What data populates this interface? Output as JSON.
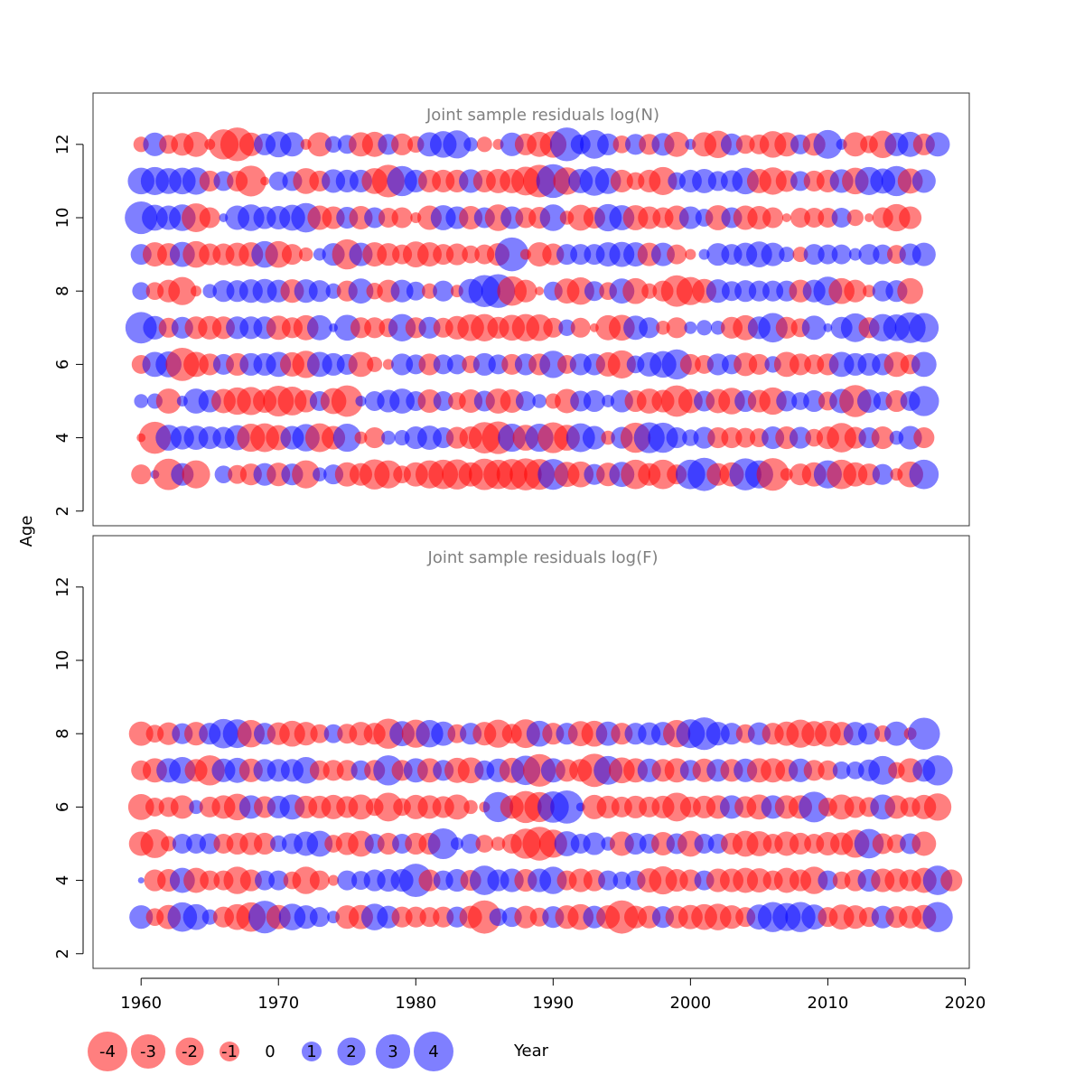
{
  "chart_data": {
    "type": "scatter",
    "variant": "bubble",
    "xlabel": "Year",
    "ylabel": "Age",
    "x_ticks": [
      1960,
      1970,
      1980,
      1990,
      2000,
      2010,
      2020
    ],
    "y_ticks": [
      2,
      4,
      6,
      8,
      10,
      12
    ],
    "xlim": [
      1956.5,
      2020.3
    ],
    "ylim": [
      1.6,
      13.4
    ],
    "colors": {
      "negative": "#ff0000",
      "positive": "#0000ff",
      "opacity": 0.5
    },
    "panels": [
      {
        "title": "Joint sample residuals log(N)",
        "ages": [
          3,
          4,
          5,
          6,
          7,
          8,
          9,
          10,
          11,
          12
        ],
        "years_start": 1960,
        "residuals": {
          "3": [
            -1,
            0.2,
            -2.5,
            1.3,
            -2,
            0,
            0.8,
            -0.9,
            -1.2,
            1.3,
            -1.4,
            1.2,
            -2,
            0.5,
            1,
            -1.5,
            -1.3,
            -2.3,
            -2,
            -0.8,
            -1.5,
            -2,
            -2.2,
            -2.3,
            -1.5,
            -2.5,
            -2.2,
            -2.4,
            -2.6,
            -2.4,
            2.4,
            -1.6,
            -1.7,
            1.1,
            -1.4,
            1.6,
            -2.2,
            -1.3,
            -2.2,
            -1,
            2.2,
            2.8,
            -1.3,
            -1.5,
            2.6,
            2,
            -2.7,
            -0.4,
            -1.2,
            -1.5,
            2,
            -2.2,
            -1.5,
            -1.2,
            1.1,
            -0.4,
            -1.7,
            2.2
          ],
          "4": [
            -0.2,
            -2.6,
            1.7,
            1.4,
            1.5,
            1.3,
            1.2,
            1.6,
            -2,
            -2.1,
            -1.6,
            1.4,
            1.9,
            -2.1,
            -1.4,
            2,
            -0.4,
            -1.1,
            0.5,
            0.6,
            1.3,
            1.5,
            1.1,
            -1.2,
            -1.3,
            -2.5,
            -2.7,
            2,
            -1.7,
            2,
            -2.4,
            -1.7,
            2.1,
            1.4,
            -0.5,
            1.2,
            -2.3,
            2.4,
            2.3,
            1.1,
            0.7,
            1.2,
            -1.1,
            -1.1,
            -1,
            -0.9,
            1.3,
            -1.3,
            1.2,
            -0.8,
            -1.3,
            -2.2,
            -1.2,
            1.1,
            -1.3,
            0.5,
            1.4,
            -1.1
          ],
          "5": [
            0.5,
            0.6,
            -1.6,
            0.3,
            1.6,
            1.3,
            -1.5,
            -1.9,
            -2,
            -1.4,
            -2.4,
            -2.1,
            -1.3,
            1,
            -1.7,
            -2.5,
            0.3,
            1,
            1.3,
            1.6,
            1,
            -1.4,
            1,
            -0.8,
            -1.4,
            1.1,
            -1.6,
            -1.4,
            1,
            0.5,
            -0.6,
            -1.5,
            1.1,
            1.2,
            0.4,
            1.3,
            -1.2,
            -1.6,
            -1.3,
            -2.5,
            -1.5,
            1.1,
            -1.5,
            -1.8,
            1.2,
            -1.3,
            -1.9,
            1.1,
            0.8,
            1.2,
            -0.9,
            1.5,
            -2.6,
            1.4,
            0.9,
            -1.2,
            1,
            2.3
          ],
          "6": [
            -0.9,
            1.6,
            1.7,
            -2.8,
            -1.6,
            -1.2,
            1.1,
            -1.3,
            1.3,
            1.3,
            1.6,
            -1.5,
            -1.9,
            1.6,
            1.3,
            1.1,
            -1.6,
            -0.6,
            -0.3,
            1.2,
            1,
            -1.2,
            1,
            1,
            -0.8,
            1.3,
            1,
            -1.1,
            1.2,
            -1.2,
            1.9,
            -0.9,
            1.2,
            1.2,
            -1.5,
            -2,
            0.8,
            1.5,
            1.8,
            2.3,
            -1.1,
            -0.9,
            1.2,
            1,
            -1.4,
            -1.1,
            0.7,
            -1.6,
            -1.2,
            -1,
            -1.2,
            1.6,
            1.3,
            1.3,
            1.2,
            -1.6,
            -1,
            1.6
          ],
          "7": [
            2.5,
            1.4,
            -1,
            1.2,
            -1.3,
            -1.4,
            -1.3,
            1.3,
            1.3,
            1.3,
            -1.5,
            -1.1,
            -1.6,
            1.6,
            0.2,
            1.7,
            -1.1,
            -1.1,
            -0.9,
            1.9,
            -1.1,
            1.2,
            -1,
            -1.4,
            -1.8,
            -1.9,
            -1.2,
            -1.7,
            -1.9,
            -1.8,
            -1,
            0.7,
            -1,
            -0.2,
            -1.6,
            -1.7,
            1.5,
            1.1,
            -0.5,
            -1.1,
            0.4,
            0.6,
            0.5,
            -1.2,
            -1.6,
            1.3,
            2.2,
            -1.2,
            -0.9,
            1.5,
            0.2,
            1.2,
            2.1,
            -1.1,
            1.9,
            1.8,
            2.4,
            2.2
          ],
          "8": [
            0.8,
            -0.8,
            -1.3,
            -2,
            -0.3,
            0.5,
            1.2,
            1.2,
            1.4,
            1.5,
            1.3,
            -1.4,
            1.4,
            1.2,
            0.6,
            -1.1,
            1.6,
            -0.7,
            -1.3,
            1.3,
            0.9,
            -0.6,
            1.1,
            -0.4,
            1.5,
            2.6,
            2.9,
            -2.2,
            -1.3,
            -0.2,
            0.9,
            -1.6,
            -1.9,
            1,
            -0.8,
            1.6,
            -1.7,
            -0.6,
            -1.1,
            -2.5,
            -2,
            -1.5,
            1.4,
            1,
            1.2,
            1.1,
            1.1,
            1.1,
            -1.3,
            1.3,
            2.1,
            -1.7,
            -1.3,
            -0.4,
            1.1,
            1.2,
            -1.7
          ],
          "9": [
            1.1,
            -1.5,
            -1.3,
            1.6,
            -1.8,
            -1.2,
            -1.2,
            -1.4,
            -1.5,
            1.8,
            -1.8,
            -1.1,
            -0.5,
            0.4,
            1.3,
            -2.3,
            1.4,
            -1.5,
            -1.3,
            -1,
            -1.7,
            -1.5,
            -1.1,
            -1.2,
            -0.8,
            -1,
            -1.3,
            2.9,
            -0.3,
            -1.5,
            -1.2,
            1.1,
            1.1,
            1.1,
            1.5,
            1.6,
            1.5,
            -1.4,
            1.4,
            -1,
            -0.3,
            0.3,
            1.3,
            1.1,
            1.4,
            1.7,
            1.4,
            0.6,
            -0.6,
            1.1,
            1,
            1,
            0.4,
            1.1,
            1,
            -0.9,
            1.2,
            1.4
          ],
          "10": [
            2.7,
            1.7,
            1.5,
            1.8,
            -2.1,
            -1.1,
            0.2,
            1.5,
            1.8,
            1.3,
            1.4,
            1.7,
            2.2,
            -1.5,
            -1.3,
            1.2,
            -1.4,
            1.1,
            -1,
            -1.1,
            -0.3,
            -1.5,
            1.6,
            1.3,
            -1.4,
            1.1,
            -1.8,
            1.3,
            -1.1,
            -1.2,
            1.8,
            -0.5,
            -1.7,
            -1.2,
            1.9,
            1.6,
            -1.6,
            -1.3,
            -1.1,
            -1.5,
            1.3,
            0.8,
            -1.6,
            1.1,
            -1.5,
            -1.4,
            -1.1,
            -0.2,
            -1,
            -1,
            -1,
            1,
            -0.7,
            -0.2,
            -1.1,
            -1.9,
            -1.3
          ],
          "11": [
            1.8,
            2,
            1.7,
            1.8,
            1.9,
            -1.1,
            1,
            -1.1,
            -2.4,
            -0.2,
            0.9,
            1,
            -1.7,
            -1.1,
            1.4,
            1.3,
            1.3,
            -1.7,
            -2.7,
            2.3,
            1.3,
            -1.3,
            -1.3,
            -1.3,
            1.4,
            -1.3,
            -1.5,
            -1.5,
            -2.1,
            -2.7,
            2.9,
            -1.9,
            1.5,
            2.2,
            1.7,
            -1.3,
            -0.8,
            -1.3,
            -2,
            0.8,
            1.3,
            1.5,
            1,
            1.2,
            1.8,
            -1.5,
            -1.9,
            -1.2,
            1,
            -1.1,
            -1.3,
            1.4,
            -1.8,
            2,
            1.6,
            2.3,
            -1.6,
            1.4
          ],
          "12": [
            -0.6,
            1.4,
            -0.9,
            -1.3,
            -1.6,
            -0.3,
            -2.3,
            -2.9,
            -1.4,
            1.2,
            1.7,
            1.5,
            -0.3,
            -1.5,
            0.7,
            0.9,
            -1.5,
            -1.6,
            1.1,
            -1.2,
            -0.7,
            1.5,
            1.8,
            2,
            0.5,
            -0.6,
            -0.3,
            1.4,
            -1.2,
            -1.6,
            -1.8,
            2.9,
            1,
            2.1,
            1.2,
            -0.8,
            1.1,
            -1.1,
            1.3,
            -1.6,
            0.3,
            -1.5,
            -1.9,
            1.2,
            -0.9,
            -1,
            -1.8,
            -1.5,
            1,
            -1.3,
            2.1,
            0.3,
            -1.5,
            -0.8,
            -1.9,
            1.4,
            1.6,
            -1.2,
            1.5
          ],
          "12_note": ""
        }
      },
      {
        "title": "Joint sample residuals log(F)",
        "ages": [
          3,
          4,
          5,
          6,
          7,
          8
        ],
        "years_start": 1960,
        "residuals": {
          "3": [
            1.4,
            -0.8,
            -1.5,
            2.2,
            1.7,
            0.6,
            -1.1,
            -1.7,
            -2.2,
            2.7,
            -1.5,
            1.8,
            1.4,
            1,
            0.4,
            -1.4,
            -1.5,
            1.8,
            1.3,
            -1.1,
            -1.1,
            -1,
            -1.1,
            1.1,
            -1.3,
            -2.8,
            0.8,
            1,
            -1.3,
            -0.9,
            1.2,
            -1.4,
            -1.7,
            1.3,
            -1.4,
            -2.8,
            -1.3,
            -1.3,
            1.2,
            -1.3,
            -1.5,
            -1.7,
            -1.8,
            -1.4,
            -1,
            1.6,
            2.3,
            2,
            2.3,
            1.6,
            -1,
            -1.6,
            -1.4,
            -1,
            1.3,
            -1.2,
            -1.3,
            -1.5,
            2.3
          ],
          "4": [
            0.1,
            -1.2,
            -1.3,
            1.6,
            -1.6,
            -1,
            -1,
            -1.9,
            -1.2,
            1,
            1,
            -0.8,
            -1.9,
            -1,
            -0.3,
            1,
            0.9,
            1.2,
            1.3,
            1.3,
            2.8,
            -1.2,
            1,
            1.3,
            -1.1,
            2.2,
            1.2,
            1.4,
            -1.3,
            1.4,
            1.9,
            -1,
            -1.4,
            -1.2,
            1,
            0.8,
            1,
            -1.5,
            -2,
            -1.3,
            -1.2,
            1,
            -1.4,
            -1.4,
            -1.6,
            -1.5,
            -1,
            -1.6,
            -1.2,
            -1.9,
            1,
            -0.8,
            -1.2,
            1.3,
            -1.4,
            -1.4,
            -1.2,
            -1.6,
            2.2,
            -1.2
          ],
          "5": [
            -1.5,
            -2.1,
            -0.6,
            1,
            1,
            1.1,
            -1,
            -1.2,
            -1.3,
            -1.2,
            0.7,
            1.1,
            1.5,
            1.7,
            -0.8,
            -1.3,
            -1.7,
            1,
            -1.2,
            1,
            -1.2,
            -1.2,
            2.4,
            0.4,
            1,
            -0.8,
            -0.5,
            -1,
            -2.3,
            -2.9,
            -2,
            1.6,
            1,
            1.3,
            0.5,
            -1.5,
            1.2,
            1,
            -1.4,
            1.1,
            -1.7,
            1,
            1,
            -1.2,
            -1.7,
            -1.6,
            -1,
            -1.5,
            -1.2,
            -1,
            -1.4,
            -1.3,
            -2,
            2.2,
            -1.1,
            -0.9,
            1.1,
            -1.5
          ],
          "6": [
            -1.7,
            -0.9,
            -1,
            -1.4,
            0.5,
            -1.1,
            -1.4,
            -1.8,
            1.4,
            -1.2,
            1.3,
            1.6,
            -1.3,
            -1.3,
            -1.5,
            -1.2,
            -1.6,
            -0.8,
            -2.1,
            -0.8,
            -1.5,
            -1.4,
            -1.2,
            -1.6,
            -0.5,
            -0.3,
            2.3,
            -1.4,
            -2.6,
            -2.3,
            2.5,
            2.8,
            0.2,
            -1.5,
            -1.3,
            -1.1,
            -1.3,
            -1.1,
            -1.3,
            -2.1,
            -1.1,
            -1.3,
            -1.4,
            1.4,
            -1.2,
            -1.6,
            1.4,
            -1.4,
            -1.4,
            2.4,
            -0.9,
            -1.6,
            -1.2,
            -1,
            1.6,
            -1.4,
            -1,
            -1.5,
            -1.9
          ],
          "7": [
            -1,
            -1.5,
            1.5,
            1.8,
            -1.3,
            -2.3,
            1.4,
            1.6,
            -1.4,
            1.3,
            1.3,
            1.3,
            1.8,
            -1,
            -1.1,
            -1.1,
            1,
            -1.1,
            2.3,
            -1.1,
            1.5,
            -1.5,
            1.1,
            -1.6,
            -1.7,
            1,
            1.4,
            -1.6,
            2.2,
            -2.7,
            1.5,
            -1.3,
            -1.3,
            -2.8,
            2.1,
            -1.7,
            -1.5,
            1.4,
            -1.3,
            -1.5,
            1.1,
            -1.4,
            1.3,
            -1.3,
            1.4,
            -1.5,
            -1.5,
            -1.3,
            1.4,
            -1.1,
            -1,
            0.8,
            0.8,
            1.2,
            2.1,
            -0.7,
            -1.5,
            1.3,
            2.3
          ],
          "8": [
            -1.5,
            -0.8,
            -1.3,
            1.1,
            -1.4,
            1.2,
            2.2,
            2.1,
            -1.9,
            1.2,
            -1.3,
            -1.7,
            -1.4,
            -0.9,
            0.9,
            -1,
            -1.4,
            -1.2,
            -2.3,
            1.6,
            -2,
            1.9,
            1.5,
            -0.9,
            1.2,
            -1.4,
            -2,
            -1,
            -2.1,
            1.7,
            -1.2,
            1.2,
            -1.6,
            -1.7,
            1.5,
            -1.2,
            1.2,
            1.3,
            1.4,
            -1.9,
            2.1,
            2.7,
            1.4,
            1.2,
            -0.9,
            1.3,
            -1.2,
            -1.5,
            -2,
            -1.6,
            -1.7,
            -1.4,
            1.4,
            1.2,
            -0.7,
            1.5,
            -0.4,
            2.6
          ]
        }
      }
    ],
    "legend": {
      "values": [
        -4,
        -3,
        -2,
        -1,
        0,
        1,
        2,
        3,
        4
      ],
      "labels": [
        "-4",
        "-3",
        "-2",
        "-1",
        "0",
        "1",
        "2",
        "3",
        "4"
      ]
    }
  }
}
